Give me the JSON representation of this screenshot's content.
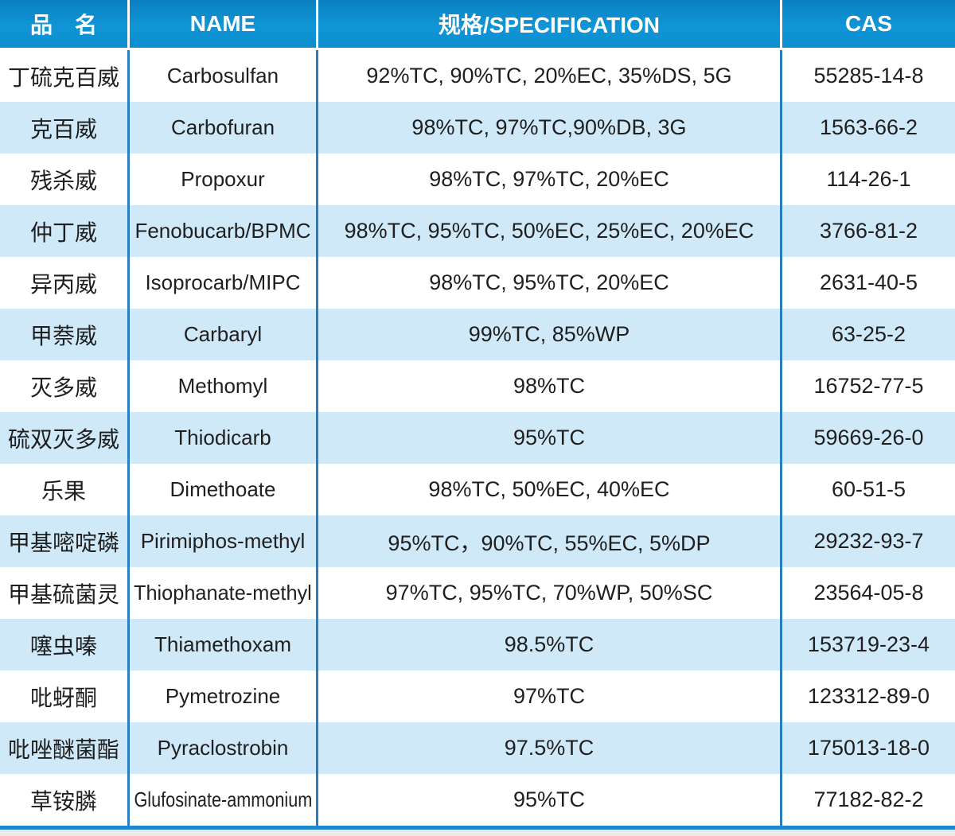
{
  "table": {
    "headers": [
      {
        "label": "品　名"
      },
      {
        "label": "NAME"
      },
      {
        "label": "规格/SPECIFICATION"
      },
      {
        "label": "CAS"
      }
    ],
    "rows": [
      {
        "cn": "丁硫克百威",
        "name": "Carbosulfan",
        "spec": "92%TC, 90%TC, 20%EC, 35%DS, 5G",
        "cas": "55285-14-8"
      },
      {
        "cn": "克百威",
        "name": "Carbofuran",
        "spec": "98%TC, 97%TC,90%DB, 3G",
        "cas": "1563-66-2"
      },
      {
        "cn": "残杀威",
        "name": "Propoxur",
        "spec": "98%TC, 97%TC, 20%EC",
        "cas": "114-26-1"
      },
      {
        "cn": "仲丁威",
        "name": "Fenobucarb/BPMC",
        "spec": "98%TC, 95%TC, 50%EC, 25%EC, 20%EC",
        "cas": "3766-81-2"
      },
      {
        "cn": "异丙威",
        "name": "Isoprocarb/MIPC",
        "spec": "98%TC, 95%TC, 20%EC",
        "cas": "2631-40-5"
      },
      {
        "cn": "甲萘威",
        "name": "Carbaryl",
        "spec": "99%TC, 85%WP",
        "cas": "63-25-2"
      },
      {
        "cn": "灭多威",
        "name": "Methomyl",
        "spec": "98%TC",
        "cas": "16752-77-5"
      },
      {
        "cn": "硫双灭多威",
        "name": "Thiodicarb",
        "spec": "95%TC",
        "cas": "59669-26-0"
      },
      {
        "cn": "乐果",
        "name": "Dimethoate",
        "spec": "98%TC, 50%EC, 40%EC",
        "cas": "60-51-5"
      },
      {
        "cn": "甲基嘧啶磷",
        "name": "Pirimiphos-methyl",
        "spec": "95%TC，90%TC, 55%EC, 5%DP",
        "cas": "29232-93-7"
      },
      {
        "cn": "甲基硫菌灵",
        "name": "Thiophanate-methyl",
        "spec": "97%TC, 95%TC, 70%WP, 50%SC",
        "cas": "23564-05-8"
      },
      {
        "cn": "噻虫嗪",
        "name": "Thiamethoxam",
        "spec": "98.5%TC",
        "cas": "153719-23-4"
      },
      {
        "cn": "吡蚜酮",
        "name": "Pymetrozine",
        "spec": "97%TC",
        "cas": "123312-89-0"
      },
      {
        "cn": "吡唑醚菌酯",
        "name": "Pyraclostrobin",
        "spec": "97.5%TC",
        "cas": "175013-18-0"
      },
      {
        "cn": "草铵膦",
        "name": "Glufosinate-ammonium",
        "spec": "95%TC",
        "cas": "77182-82-2"
      }
    ]
  },
  "colors": {
    "header_bg": "#1095d6",
    "header_text": "#ffffff",
    "row_bg": "#ffffff",
    "row_alt_bg": "#cfe9f8",
    "column_divider": "#2a7dbd",
    "body_text": "#1f1f1f",
    "bottom_line": "#1e88cc",
    "bottom_strip": "#e9e9e9"
  }
}
